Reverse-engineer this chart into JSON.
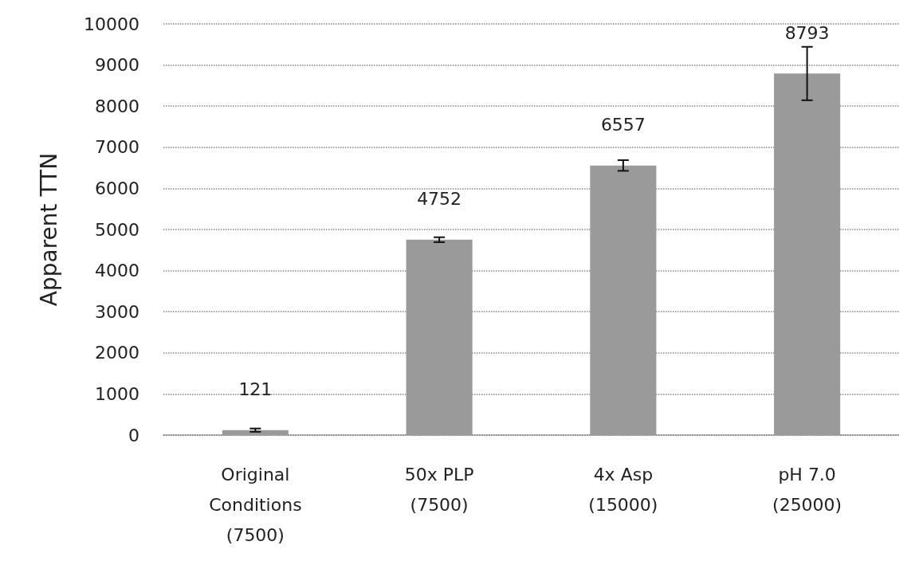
{
  "chart_data": {
    "type": "bar",
    "ylabel": "Apparent TTN",
    "categories": [
      "Original\nConditions\n(7500)",
      "50x PLP\n(7500)",
      "4x Asp\n(15000)",
      "pH 7.0\n(25000)"
    ],
    "values": [
      121,
      4752,
      6557,
      8793
    ],
    "errors": [
      40,
      60,
      130,
      650
    ],
    "color": "#9a9a9a",
    "ylim": [
      0,
      10000
    ],
    "yticks": [
      0,
      1000,
      2000,
      3000,
      4000,
      5000,
      6000,
      7000,
      8000,
      9000,
      10000
    ],
    "grid": "y",
    "data_labels": true
  }
}
